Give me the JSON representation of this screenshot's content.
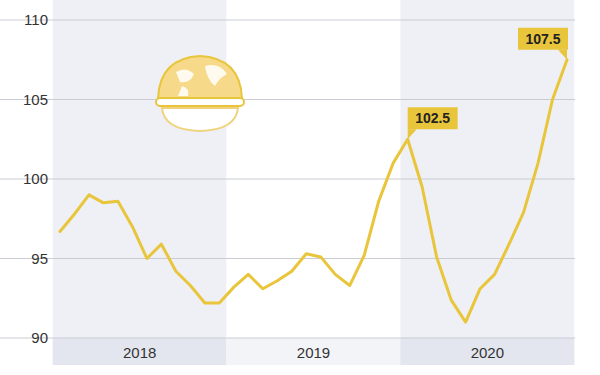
{
  "chart_data": {
    "type": "line",
    "categories": [
      "2018",
      null,
      null,
      null,
      null,
      null,
      null,
      null,
      null,
      null,
      null,
      null,
      "2019",
      null,
      null,
      null,
      null,
      null,
      null,
      null,
      null,
      null,
      null,
      null,
      "2020",
      null,
      null,
      null,
      null,
      null,
      null,
      null,
      null,
      null,
      null,
      null
    ],
    "values": [
      96.7,
      97.8,
      99.0,
      98.5,
      98.6,
      97.0,
      95.0,
      95.9,
      94.2,
      93.3,
      92.2,
      92.2,
      93.2,
      94.0,
      93.1,
      93.6,
      94.2,
      95.3,
      95.1,
      94.0,
      93.3,
      95.2,
      98.6,
      101.0,
      102.5,
      99.5,
      95.1,
      92.4,
      91.0,
      93.1,
      94.0,
      95.9,
      97.9,
      101.0,
      105.0,
      107.5
    ],
    "value_labels": [
      null,
      null,
      null,
      null,
      null,
      null,
      null,
      null,
      null,
      null,
      null,
      null,
      null,
      null,
      null,
      null,
      null,
      null,
      null,
      null,
      null,
      null,
      null,
      null,
      "102.5",
      null,
      null,
      null,
      null,
      null,
      null,
      null,
      null,
      null,
      null,
      "107.5"
    ],
    "color": "#e9c53b",
    "ylim": [
      90,
      110
    ],
    "yticks": [
      90,
      95,
      100,
      105,
      110
    ],
    "grid": true
  }
}
